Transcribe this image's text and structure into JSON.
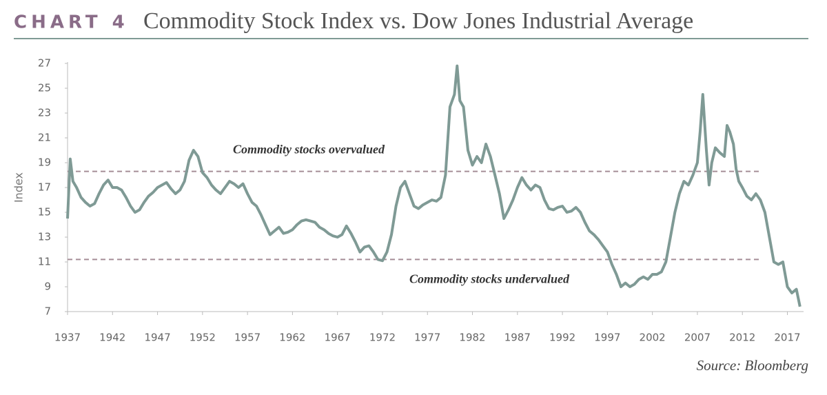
{
  "chart_data": {
    "type": "line",
    "label": "CHART 4",
    "title": "Commodity Stock Index vs. Dow Jones Industrial Average",
    "y_label": "Index",
    "source": "Source: Bloomberg",
    "xlim": [
      1937,
      2018.8
    ],
    "xticks": [
      1937,
      1942,
      1947,
      1952,
      1957,
      1962,
      1967,
      1972,
      1977,
      1982,
      1987,
      1992,
      1997,
      2002,
      2007,
      2012,
      2017
    ],
    "ylim": [
      7,
      27
    ],
    "yticks": [
      7,
      9,
      11,
      13,
      15,
      17,
      19,
      21,
      23,
      25,
      27
    ],
    "reference_lines": [
      {
        "value": 18.3,
        "label": "Commodity stocks overvalued",
        "color": "#a58d97"
      },
      {
        "value": 11.2,
        "label": "Commodity stocks undervalued",
        "color": "#a58d97"
      }
    ],
    "x": [
      1937,
      1937.3,
      1937.6,
      1938,
      1938.5,
      1939,
      1939.5,
      1940,
      1940.5,
      1941,
      1941.5,
      1942,
      1942.5,
      1943,
      1943.5,
      1944,
      1944.5,
      1945,
      1945.5,
      1946,
      1946.5,
      1947,
      1947.5,
      1948,
      1948.5,
      1949,
      1949.5,
      1950,
      1950.5,
      1951,
      1951.5,
      1952,
      1952.5,
      1953,
      1953.5,
      1954,
      1954.5,
      1955,
      1955.5,
      1956,
      1956.5,
      1957,
      1957.5,
      1958,
      1958.5,
      1959,
      1959.5,
      1960,
      1960.5,
      1961,
      1961.5,
      1962,
      1962.5,
      1963,
      1963.5,
      1964,
      1964.5,
      1965,
      1965.5,
      1966,
      1966.5,
      1967,
      1967.5,
      1968,
      1968.5,
      1969,
      1969.5,
      1970,
      1970.5,
      1971,
      1971.5,
      1972,
      1972.5,
      1973,
      1973.5,
      1974,
      1974.5,
      1975,
      1975.5,
      1976,
      1976.5,
      1977,
      1977.5,
      1978,
      1978.5,
      1979,
      1979.5,
      1980,
      1980.3,
      1980.6,
      1981,
      1981.5,
      1982,
      1982.5,
      1983,
      1983.5,
      1984,
      1984.5,
      1985,
      1985.5,
      1986,
      1986.5,
      1987,
      1987.5,
      1988,
      1988.5,
      1989,
      1989.5,
      1990,
      1990.5,
      1991,
      1991.5,
      1992,
      1992.5,
      1993,
      1993.5,
      1994,
      1994.5,
      1995,
      1995.5,
      1996,
      1996.5,
      1997,
      1997.5,
      1998,
      1998.5,
      1999,
      1999.5,
      2000,
      2000.5,
      2001,
      2001.5,
      2002,
      2002.5,
      2003,
      2003.5,
      2004,
      2004.5,
      2005,
      2005.5,
      2006,
      2006.5,
      2007,
      2007.3,
      2007.6,
      2008,
      2008.3,
      2008.6,
      2009,
      2009.5,
      2010,
      2010.3,
      2010.6,
      2011,
      2011.3,
      2011.6,
      2012,
      2012.5,
      2013,
      2013.5,
      2014,
      2014.5,
      2015,
      2015.5,
      2016,
      2016.5,
      2017,
      2017.5,
      2018,
      2018.4
    ],
    "series": [
      {
        "name": "Index",
        "color": "#7f9a95",
        "values": [
          14.5,
          19.3,
          17.5,
          17,
          16.2,
          15.8,
          15.5,
          15.7,
          16.5,
          17.2,
          17.6,
          17,
          17,
          16.8,
          16.2,
          15.5,
          15,
          15.2,
          15.8,
          16.3,
          16.6,
          17,
          17.2,
          17.4,
          16.9,
          16.5,
          16.8,
          17.5,
          19.2,
          20,
          19.5,
          18.2,
          17.8,
          17.2,
          16.8,
          16.5,
          17,
          17.5,
          17.3,
          17,
          17.3,
          16.5,
          15.8,
          15.5,
          14.8,
          14,
          13.2,
          13.5,
          13.8,
          13.3,
          13.4,
          13.6,
          14,
          14.3,
          14.4,
          14.3,
          14.2,
          13.8,
          13.6,
          13.3,
          13.1,
          13,
          13.2,
          13.9,
          13.3,
          12.6,
          11.8,
          12.2,
          12.3,
          11.8,
          11.2,
          11.1,
          11.8,
          13.2,
          15.5,
          17,
          17.5,
          16.5,
          15.5,
          15.3,
          15.6,
          15.8,
          16,
          15.9,
          16.2,
          18,
          23.5,
          24.5,
          26.8,
          24,
          23.5,
          20,
          18.8,
          19.5,
          19,
          20.5,
          19.5,
          18,
          16.5,
          14.5,
          15.2,
          16,
          17,
          17.8,
          17.2,
          16.8,
          17.2,
          17,
          16,
          15.3,
          15.2,
          15.4,
          15.5,
          15,
          15.1,
          15.4,
          15,
          14.2,
          13.5,
          13.2,
          12.8,
          12.3,
          11.8,
          10.8,
          10,
          9,
          9.3,
          9,
          9.2,
          9.6,
          9.8,
          9.6,
          10,
          10,
          10.2,
          11,
          13,
          15,
          16.5,
          17.5,
          17.2,
          18,
          19,
          21.5,
          24.5,
          20,
          17.2,
          19,
          20.2,
          19.8,
          19.5,
          22,
          21.5,
          20.5,
          18.5,
          17.5,
          17,
          16.3,
          16,
          16.5,
          16,
          15,
          13,
          11,
          10.8,
          11,
          9,
          8.5,
          8.8,
          7.4
        ]
      }
    ]
  }
}
